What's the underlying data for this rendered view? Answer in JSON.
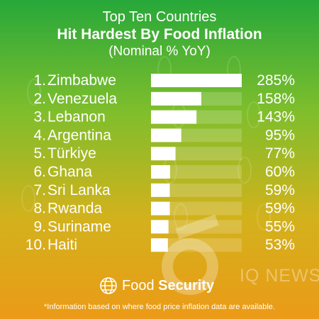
{
  "title": {
    "line1": "Top Ten Countries",
    "line2": "Hit Hardest By Food Inflation",
    "line3": "(Nominal % YoY)"
  },
  "colors": {
    "bar": "#ffffff",
    "track": "rgba(255,255,255,0.18)",
    "text": "#ffffff",
    "gradient_top": "#27a83a",
    "gradient_bottom": "#ec9a17"
  },
  "chart_data": {
    "type": "bar",
    "orientation": "horizontal",
    "categories": [
      "Zimbabwe",
      "Venezuela",
      "Lebanon",
      "Argentina",
      "Türkiye",
      "Ghana",
      "Sri Lanka",
      "Rwanda",
      "Suriname",
      "Haiti"
    ],
    "ranks": [
      "1.",
      "2.",
      "3.",
      "4.",
      "5.",
      "6.",
      "7.",
      "8.",
      "9.",
      "10."
    ],
    "values": [
      285,
      158,
      143,
      95,
      77,
      60,
      59,
      59,
      55,
      53
    ],
    "value_labels": [
      "285%",
      "158%",
      "143%",
      "95%",
      "77%",
      "60%",
      "59%",
      "59%",
      "55%",
      "53%"
    ],
    "unit": "%",
    "xlim": [
      0,
      285
    ]
  },
  "footer": {
    "label_regular": "Food",
    "label_bold": "Security",
    "icon": "globe-icon"
  },
  "watermark": "IQ NEWS",
  "footnote": "*Information based on where food price inflation data are available."
}
